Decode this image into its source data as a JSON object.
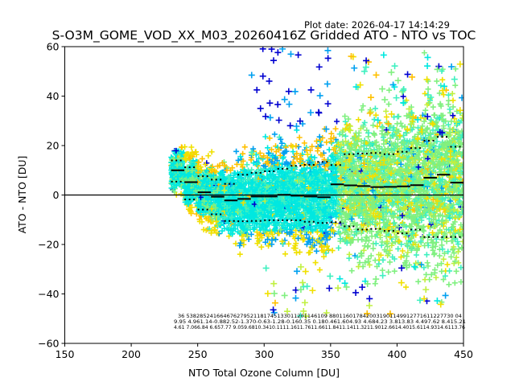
{
  "plot_date": "Plot date: 2026-04-17 14:14:29",
  "chart_data": {
    "type": "scatter",
    "title": "S-O3M_GOME_VOD_XX_M03_20260416Z Gridded ATO - NTO vs TOC",
    "xlabel": "NTO Total Ozone Column [DU]",
    "ylabel": "ATO - NTO [DU]",
    "xlim": [
      150,
      450
    ],
    "ylim": [
      -60,
      60
    ],
    "xticks": [
      "150",
      "200",
      "250",
      "300",
      "350",
      "400",
      "450"
    ],
    "yticks": [
      "−60",
      "−40",
      "−20",
      "0",
      "20",
      "40",
      "60"
    ],
    "grid": false,
    "zero_line": 0,
    "bin_edges": [
      230,
      240,
      250,
      260,
      270,
      280,
      290,
      300,
      310,
      320,
      330,
      340,
      350,
      360,
      370,
      380,
      390,
      400,
      410,
      420,
      430,
      440,
      450
    ],
    "median": [
      10.0,
      5.2,
      1.1,
      -0.7,
      -2.2,
      -1.6,
      -0.6,
      -0.6,
      0.1,
      -0.3,
      -0.6,
      -0.9,
      4.3,
      3.9,
      3.6,
      3.2,
      3.3,
      3.5,
      4.0,
      7.0,
      8.2,
      5.0
    ],
    "upper_dotted": [
      14.0,
      11.2,
      7.6,
      6.2,
      4.5,
      8.2,
      9.0,
      9.6,
      10.6,
      11.8,
      12.2,
      13.4,
      12.1,
      16.5,
      16.8,
      17.0,
      16.5,
      17.5,
      19.0,
      22.0,
      23.5,
      19.5
    ],
    "lower_dotted": [
      5.4,
      -1.8,
      -5.9,
      -7.8,
      -10.5,
      -10.6,
      -10.5,
      -10.2,
      -10.2,
      -10.2,
      -10.8,
      -11.3,
      -11.0,
      -12.7,
      -14.0,
      -13.7,
      -14.5,
      -15.5,
      -14.0,
      -17.0,
      -17.0,
      -17.0
    ],
    "bin_stats": {
      "row1": "36  538285241664676279521181745133011201146109 8801160178420031901149912771611227730 04",
      "row2": "9.95 4.961.14-0.882.52-1.370-0.63-1.28-0.160.35 0.180.461.604.93 4.684.23 3.813.83 4.497.62 8.415.21",
      "row3": "4.61 7.066.84 6.657.77 9.059.6810.3410.1111.1611.7611.6611.8411.1411.3211.9012.6614.4015.6114.9314.6113.76"
    },
    "colormap": [
      "#0000d0",
      "#00a0f0",
      "#00e8e0",
      "#40f0c0",
      "#80f080",
      "#c0f040",
      "#f0e000",
      "#ffc000"
    ]
  }
}
